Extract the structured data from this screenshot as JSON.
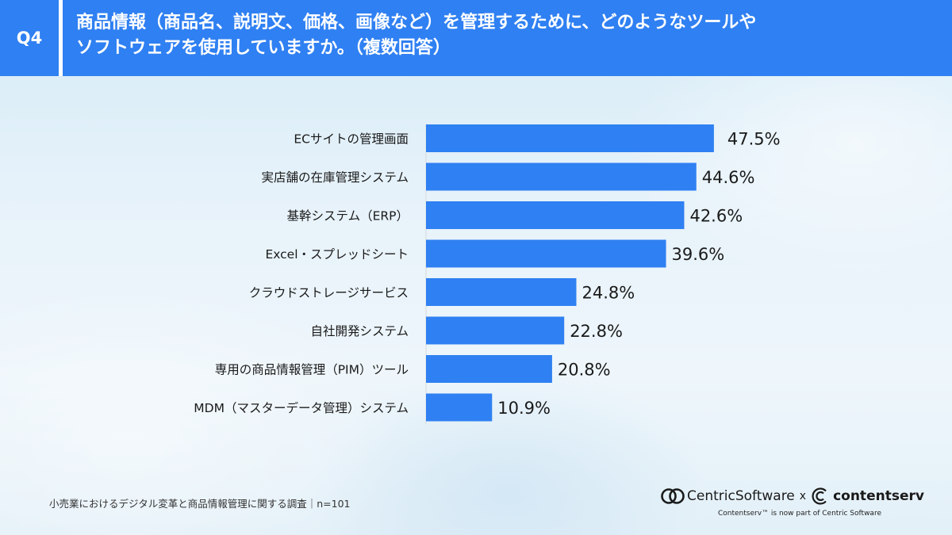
{
  "header": {
    "badge": "Q4",
    "title_line1": "商品情報（商品名、説明文、価格、画像など）を管理するために、どのようなツールや",
    "title_line2": "ソフトウェアを使用していますか。（複数回答）"
  },
  "chart_data": {
    "type": "bar",
    "orientation": "horizontal",
    "categories": [
      "ECサイトの管理画面",
      "実店舗の在庫管理システム",
      "基幹システム（ERP）",
      "Excel・スプレッドシート",
      "クラウドストレージサービス",
      "自社開発システム",
      "専用の商品情報管理（PIM）ツール",
      "MDM（マスターデータ管理）システム"
    ],
    "values": [
      47.5,
      44.6,
      42.6,
      39.6,
      24.8,
      22.8,
      20.8,
      10.9
    ],
    "value_labels": [
      "47.5%",
      "44.6%",
      "42.6%",
      "39.6%",
      "24.8%",
      "22.8%",
      "20.8%",
      "10.9%"
    ],
    "xlim": [
      0,
      50
    ],
    "bar_color": "#2f80f2",
    "grid": false,
    "legend": "none"
  },
  "footer": {
    "note": "小売業におけるデジタル変革と商品情報管理に関する調査｜n=101",
    "logo_centric": "CentricSoftware",
    "logo_times": "x",
    "logo_contentserv": "contentserv",
    "tagline": "Contentserv™ is now part of Centric Software"
  },
  "colors": {
    "header_bg": "#2f80f2",
    "bar": "#2f80f2",
    "axis": "#d9d9d9",
    "text": "#1a1a1a"
  }
}
